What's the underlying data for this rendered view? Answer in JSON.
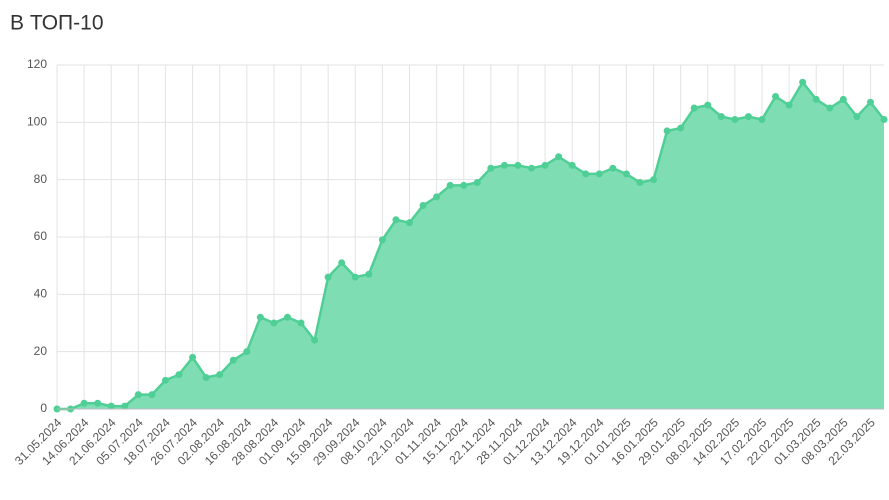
{
  "chart_data": {
    "type": "area",
    "title": "В ТОП-10",
    "categories": [
      "31.05.2024",
      null,
      "14.06.2024",
      null,
      "21.06.2024",
      null,
      "05.07.2024",
      null,
      "18.07.2024",
      null,
      "26.07.2024",
      null,
      "02.08.2024",
      null,
      "16.08.2024",
      null,
      "28.08.2024",
      null,
      "01.09.2024",
      null,
      "15.09.2024",
      null,
      "29.09.2024",
      null,
      "08.10.2024",
      null,
      "22.10.2024",
      null,
      "01.11.2024",
      null,
      "15.11.2024",
      null,
      "22.11.2024",
      null,
      "28.11.2024",
      null,
      "01.12.2024",
      null,
      "13.12.2024",
      null,
      "19.12.2024",
      null,
      "01.01.2025",
      null,
      "16.01.2025",
      null,
      "29.01.2025",
      null,
      "08.02.2025",
      null,
      "14.02.2025",
      null,
      "17.02.2025",
      null,
      "22.02.2025",
      null,
      "01.03.2025",
      null,
      "08.03.2025",
      null,
      "22.03.2025",
      null
    ],
    "values": [
      0,
      0,
      2,
      2,
      1,
      1,
      5,
      5,
      10,
      12,
      18,
      11,
      12,
      17,
      20,
      32,
      30,
      32,
      30,
      24,
      46,
      51,
      46,
      47,
      59,
      66,
      65,
      71,
      74,
      78,
      78,
      79,
      84,
      85,
      85,
      84,
      85,
      88,
      85,
      82,
      82,
      84,
      82,
      79,
      80,
      97,
      98,
      105,
      106,
      102,
      101,
      102,
      101,
      109,
      106,
      114,
      108,
      105,
      108,
      102,
      107,
      101
    ],
    "color": "#4fcf95",
    "fill": "#7fddb4",
    "ylim": [
      0,
      120
    ],
    "yticks": [
      0,
      20,
      40,
      60,
      80,
      100,
      120
    ],
    "grid": true
  }
}
